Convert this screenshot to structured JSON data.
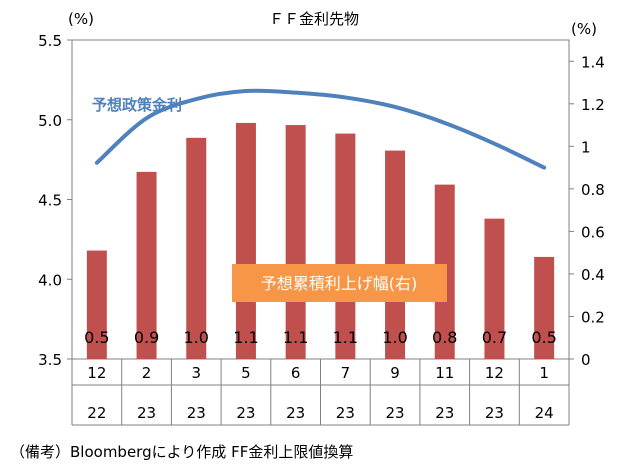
{
  "chart_data": {
    "type": "bar+line",
    "title": "ＦＦ金利先物",
    "left_axis": {
      "unit_label": "(%)",
      "ylim": [
        3.5,
        5.5
      ],
      "ticks": [
        "3.5",
        "4.0",
        "4.5",
        "5.0",
        "5.5"
      ]
    },
    "right_axis": {
      "unit_label": "(%)",
      "ylim": [
        0,
        1.5
      ],
      "ticks": [
        "0",
        "0.2",
        "0.4",
        "0.6",
        "0.8",
        "1",
        "1.2",
        "1.4"
      ]
    },
    "categories": [
      {
        "month": "12",
        "year": "22"
      },
      {
        "month": "2",
        "year": "23"
      },
      {
        "month": "3",
        "year": "23"
      },
      {
        "month": "5",
        "year": "23"
      },
      {
        "month": "6",
        "year": "23"
      },
      {
        "month": "7",
        "year": "23"
      },
      {
        "month": "9",
        "year": "23"
      },
      {
        "month": "11",
        "year": "23"
      },
      {
        "month": "12",
        "year": "23"
      },
      {
        "month": "1",
        "year": "24"
      }
    ],
    "series": [
      {
        "name": "予想累積利上げ幅(右)",
        "type": "bar",
        "axis": "right",
        "color": "#c0504d",
        "values": [
          0.51,
          0.88,
          1.04,
          1.11,
          1.1,
          1.06,
          0.98,
          0.82,
          0.66,
          0.48
        ],
        "labels": [
          "0.5",
          "0.9",
          "1.0",
          "1.1",
          "1.1",
          "1.1",
          "1.0",
          "0.8",
          "0.7",
          "0.5"
        ]
      },
      {
        "name": "予想政策金利",
        "type": "line",
        "axis": "left",
        "color": "#4f81bd",
        "values": [
          4.73,
          5.01,
          5.13,
          5.18,
          5.17,
          5.14,
          5.08,
          4.98,
          4.85,
          4.7
        ]
      }
    ],
    "legend_box_color": "#f79646"
  },
  "note": "（備考）Bloombergにより作成 FF金利上限値換算"
}
